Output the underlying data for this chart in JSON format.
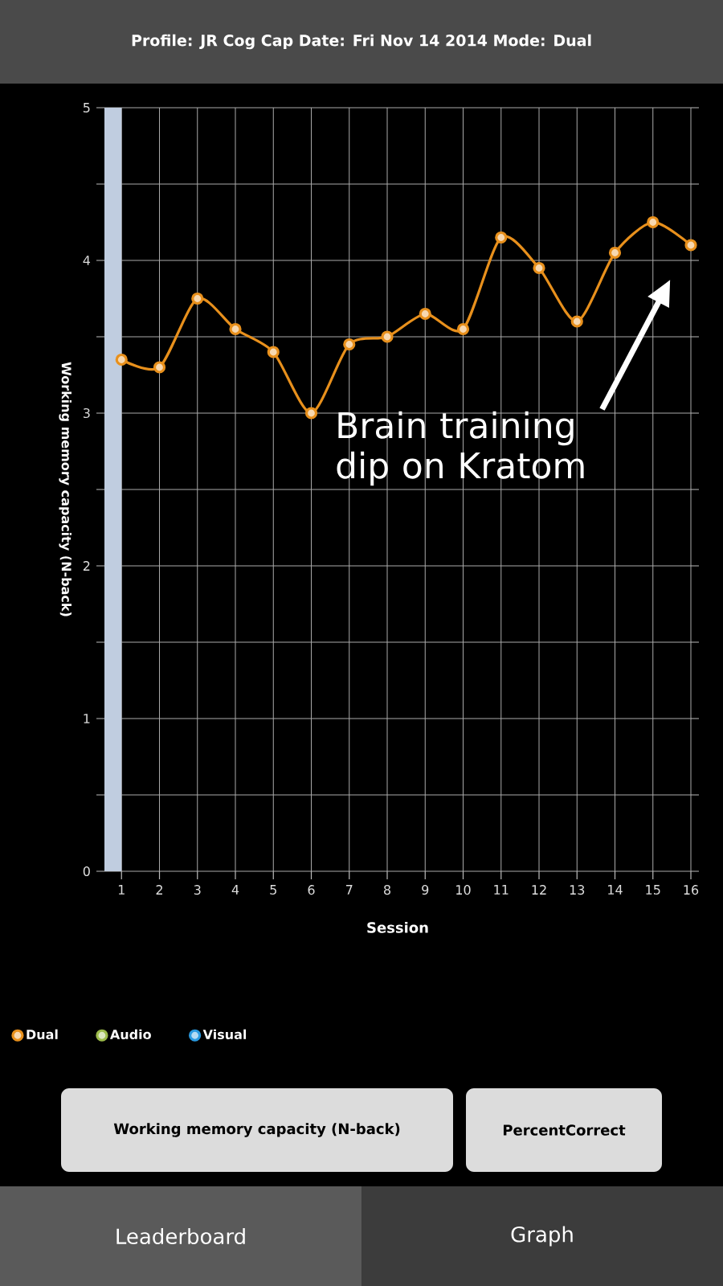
{
  "chart_data": {
    "type": "line",
    "title": "Profile: JR Cog Cap   Date: Fri Nov 14 2014   Mode: Dual",
    "xlabel": "Session",
    "ylabel": "Working memory capacity (N-back)",
    "x": [
      1,
      2,
      3,
      4,
      5,
      6,
      7,
      8,
      9,
      10,
      11,
      12,
      13,
      14,
      15,
      16
    ],
    "series": [
      {
        "name": "Dual",
        "color": "#e8901c",
        "values": [
          3.35,
          3.3,
          3.75,
          3.55,
          3.4,
          3.0,
          3.45,
          3.5,
          3.65,
          3.55,
          4.15,
          3.95,
          3.6,
          4.05,
          4.25,
          4.1
        ]
      },
      {
        "name": "Audio",
        "color": "#9cbb4a",
        "values": [
          null,
          null,
          null,
          null,
          null,
          null,
          null,
          null,
          null,
          null,
          null,
          null,
          null,
          null,
          null,
          null
        ]
      },
      {
        "name": "Visual",
        "color": "#2a9ae0",
        "values": [
          null,
          null,
          null,
          null,
          null,
          null,
          null,
          null,
          null,
          null,
          null,
          null,
          null,
          null,
          null,
          null
        ]
      }
    ],
    "xlim": [
      0.55,
      16
    ],
    "ylim": [
      0,
      5
    ],
    "xticks": [
      1,
      2,
      3,
      4,
      5,
      6,
      7,
      8,
      9,
      10,
      11,
      12,
      13,
      14,
      15,
      16
    ],
    "yticks": [
      0,
      {
        "value": 0.5,
        "label": null
      },
      1,
      {
        "value": 1.5,
        "label": null
      },
      2,
      {
        "value": 2.5,
        "label": null
      },
      3,
      {
        "value": 3.5,
        "label": null
      },
      4,
      {
        "value": 4.5,
        "label": null
      },
      5
    ],
    "bands": [
      {
        "axis": "x",
        "from": 0.55,
        "to": 1,
        "color": "#c0cde0"
      }
    ],
    "grid": true,
    "legend": "bottom",
    "marker": "circle",
    "line_style": "solid",
    "annotations": [
      "Brain training dip on Kratom",
      "Working memory capacity (N-back)",
      "PercentCorrect",
      "Leaderboard",
      "Graph"
    ]
  }
}
